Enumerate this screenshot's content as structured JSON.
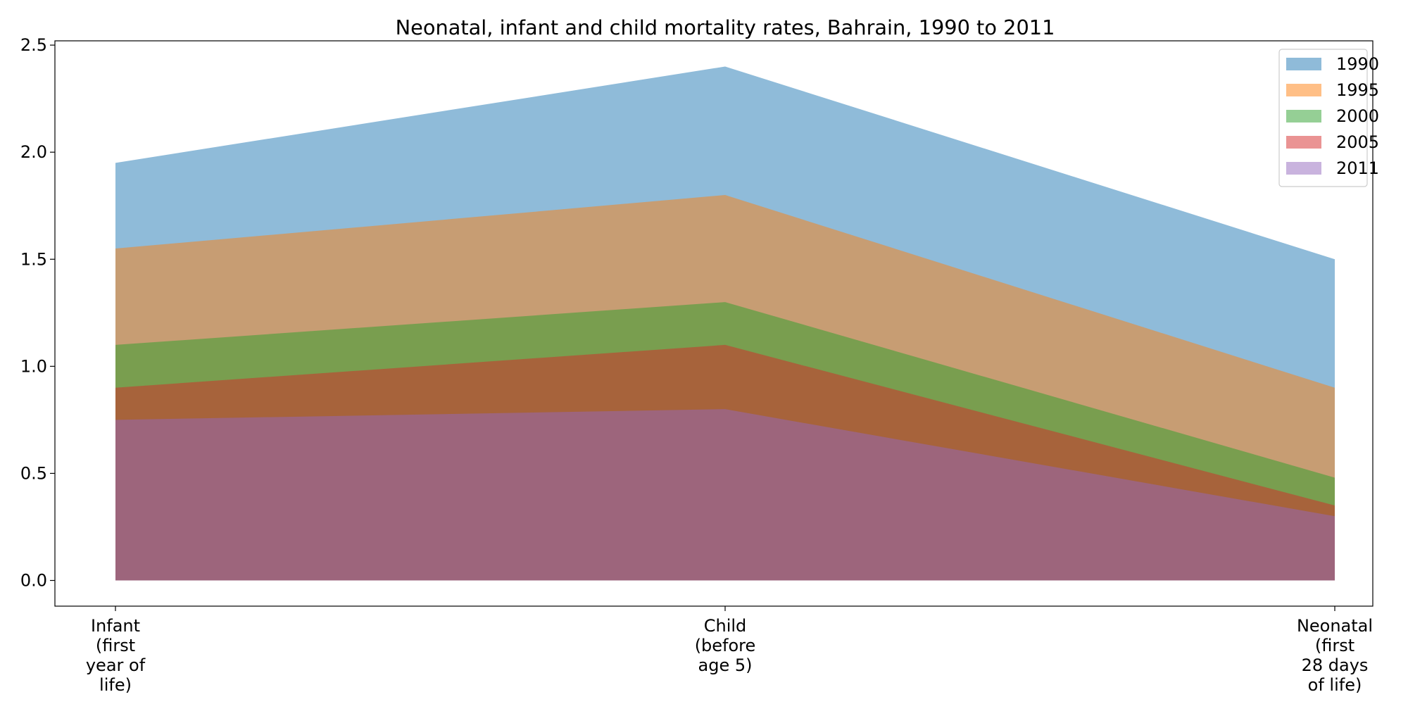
{
  "chart_data": {
    "type": "area",
    "title": "Neonatal, infant and child mortality rates, Bahrain, 1990 to 2011",
    "xlabel": "",
    "ylabel": "",
    "categories": [
      [
        "Infant",
        "(first",
        "year of",
        "life)"
      ],
      [
        "Child",
        "(before",
        "age 5)"
      ],
      [
        "Neonatal",
        "(first",
        "28 days",
        "of life)"
      ]
    ],
    "series": [
      {
        "name": "1990",
        "values": [
          1.95,
          2.4,
          1.5
        ],
        "color": "#1f77b4"
      },
      {
        "name": "1995",
        "values": [
          1.55,
          1.8,
          0.9
        ],
        "color": "#ff7f0e"
      },
      {
        "name": "2000",
        "values": [
          1.1,
          1.3,
          0.48
        ],
        "color": "#2ca02c"
      },
      {
        "name": "2005",
        "values": [
          0.9,
          1.1,
          0.35
        ],
        "color": "#d62728"
      },
      {
        "name": "2011",
        "values": [
          0.75,
          0.8,
          0.3
        ],
        "color": "#9467bd"
      }
    ],
    "ylim": [
      -0.12,
      2.52
    ],
    "yticks": [
      "0.0",
      "0.5",
      "1.0",
      "1.5",
      "2.0",
      "2.5"
    ],
    "fill_alpha": 0.5,
    "grid": false,
    "legend_position": "top-right"
  }
}
